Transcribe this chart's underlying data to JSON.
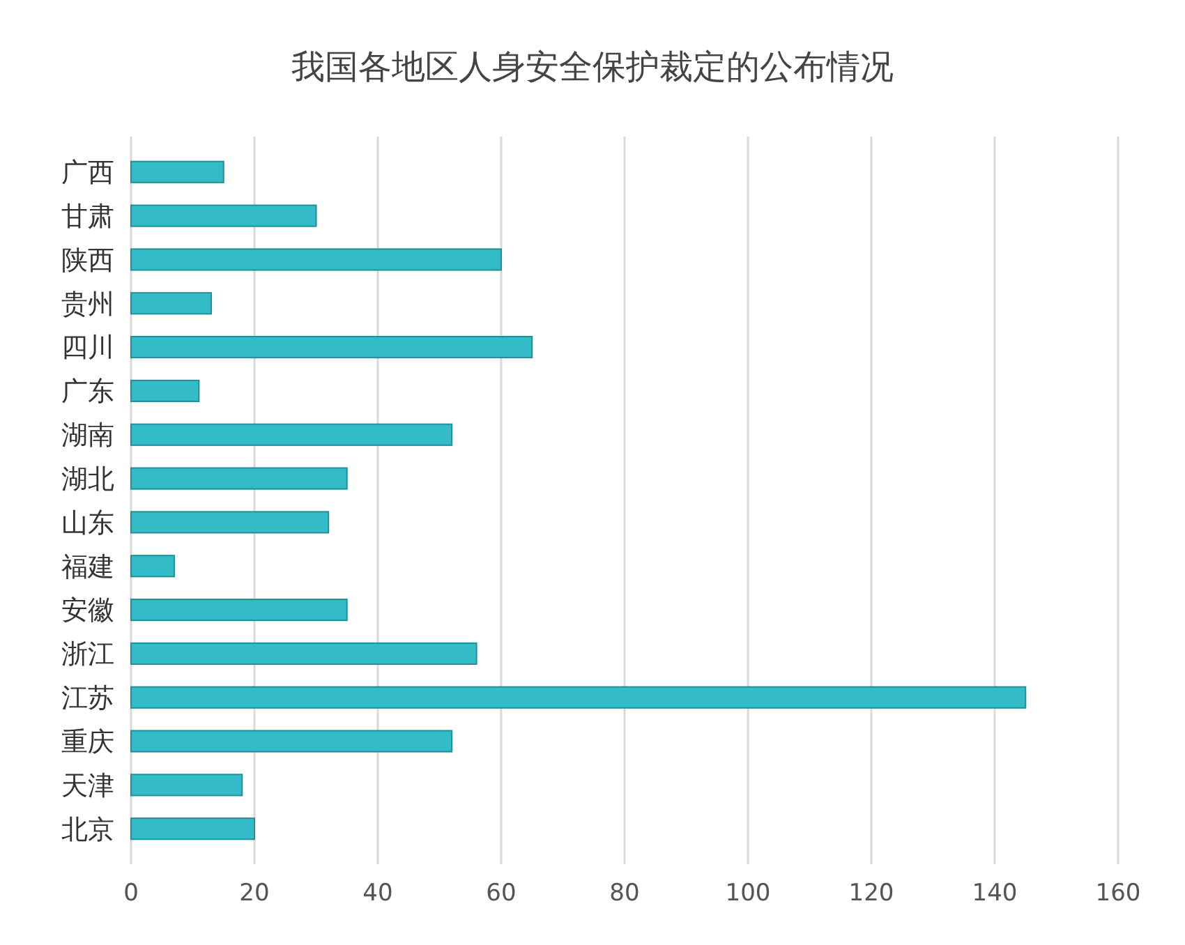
{
  "chart_data": {
    "type": "bar",
    "orientation": "horizontal",
    "title": "我国各地区人身安全保护裁定的公布情况",
    "categories": [
      "广西",
      "甘肃",
      "陕西",
      "贵州",
      "四川",
      "广东",
      "湖南",
      "湖北",
      "山东",
      "福建",
      "安徽",
      "浙江",
      "江苏",
      "重庆",
      "天津",
      "北京"
    ],
    "values": [
      15,
      30,
      60,
      13,
      65,
      11,
      52,
      35,
      32,
      7,
      35,
      56,
      145,
      52,
      18,
      20
    ],
    "color": "#33bcc8",
    "xlim": [
      0,
      160
    ],
    "xticks": [
      0,
      20,
      40,
      60,
      80,
      100,
      120,
      140,
      160
    ],
    "grid": "x"
  }
}
